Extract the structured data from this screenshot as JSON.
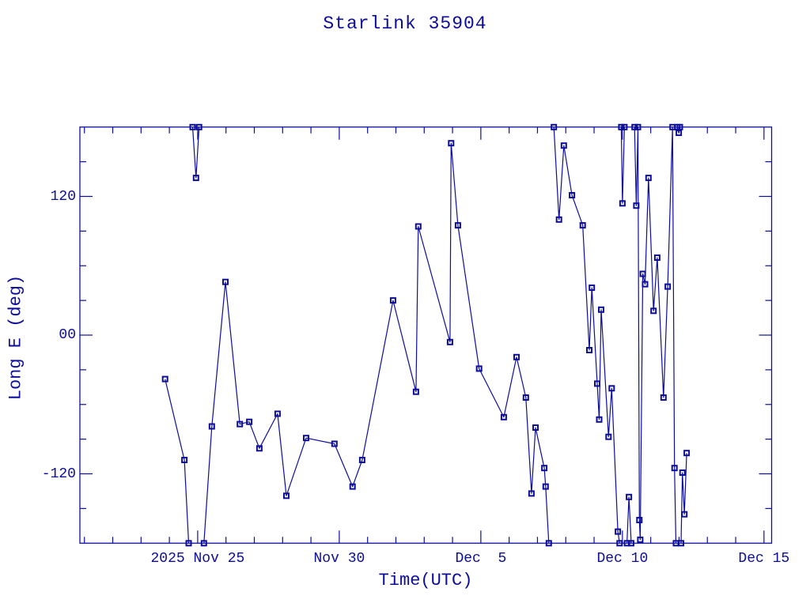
{
  "window": {
    "background": "#ffffff"
  },
  "colors": {
    "accent": "#0d0d9d",
    "background": "#ffffff"
  },
  "chart_data": {
    "type": "line",
    "title": "Starlink 35904",
    "xlabel": "Time(UTC)",
    "ylabel": "Long E (deg)",
    "legend": null,
    "grid": false,
    "marker": "open-square",
    "series_color": "#0d0d9d",
    "x_epoch": "days since 2025-11-20 00:00 UTC",
    "x_range": [
      0.84,
      25.27
    ],
    "y_range": [
      -180,
      180
    ],
    "x_major_ticks": [
      {
        "label": "2025 Nov 25",
        "day": 5
      },
      {
        "label": "Nov 30",
        "day": 10
      },
      {
        "label": "Dec  5",
        "day": 15
      },
      {
        "label": "Dec 10",
        "day": 20
      },
      {
        "label": "Dec 15",
        "day": 25
      }
    ],
    "x_minor_tick_step_days": 1,
    "y_major_ticks": [
      {
        "label": "120",
        "deg": 120
      },
      {
        "label": "00",
        "deg": 0
      },
      {
        "label": "-120",
        "deg": -120
      }
    ],
    "y_minor_tick_step_deg": 30,
    "points_format": "[day, longitude_east_deg, flag] ; flag 1 = measured sample (marker), flag 0 = value at the ±180 wrap limit (segments joining two flag-0 points are not drawn)",
    "points": [
      [
        3.85,
        -38,
        1
      ],
      [
        4.53,
        -108,
        1
      ],
      [
        4.68,
        -180,
        0
      ],
      [
        4.82,
        180,
        0
      ],
      [
        4.94,
        136,
        1
      ],
      [
        5.05,
        180,
        0
      ],
      [
        5.22,
        -180,
        0
      ],
      [
        5.5,
        -79,
        1
      ],
      [
        5.98,
        46,
        1
      ],
      [
        6.49,
        -77,
        1
      ],
      [
        6.82,
        -75,
        1
      ],
      [
        7.18,
        -98,
        1
      ],
      [
        7.82,
        -68,
        1
      ],
      [
        8.13,
        -139,
        1
      ],
      [
        8.83,
        -89,
        1
      ],
      [
        9.83,
        -94,
        1
      ],
      [
        10.47,
        -131,
        1
      ],
      [
        10.81,
        -108,
        1
      ],
      [
        11.9,
        30,
        1
      ],
      [
        12.71,
        -49,
        1
      ],
      [
        12.79,
        94,
        1
      ],
      [
        13.91,
        -6,
        1
      ],
      [
        13.95,
        166,
        1
      ],
      [
        14.19,
        95,
        1
      ],
      [
        14.94,
        -29,
        1
      ],
      [
        15.81,
        -71,
        1
      ],
      [
        16.26,
        -19,
        1
      ],
      [
        16.59,
        -54,
        1
      ],
      [
        16.79,
        -137,
        1
      ],
      [
        16.93,
        -80,
        1
      ],
      [
        17.24,
        -115,
        1
      ],
      [
        17.29,
        -131,
        1
      ],
      [
        17.4,
        -180,
        0
      ],
      [
        17.58,
        180,
        0
      ],
      [
        17.76,
        100,
        1
      ],
      [
        17.93,
        164,
        1
      ],
      [
        18.22,
        121,
        1
      ],
      [
        18.6,
        95,
        1
      ],
      [
        18.83,
        -13,
        1
      ],
      [
        18.92,
        41,
        1
      ],
      [
        19.11,
        -42,
        1
      ],
      [
        19.18,
        -73,
        1
      ],
      [
        19.25,
        22,
        1
      ],
      [
        19.51,
        -88,
        1
      ],
      [
        19.62,
        -46,
        1
      ],
      [
        19.84,
        -170,
        1
      ],
      [
        19.9,
        -180,
        0
      ],
      [
        19.96,
        180,
        0
      ],
      [
        20.0,
        114,
        1
      ],
      [
        20.07,
        180,
        0
      ],
      [
        20.16,
        -180,
        0
      ],
      [
        20.23,
        -140,
        1
      ],
      [
        20.31,
        -180,
        0
      ],
      [
        20.43,
        180,
        0
      ],
      [
        20.49,
        112,
        1
      ],
      [
        20.55,
        180,
        0
      ],
      [
        20.6,
        -160,
        1
      ],
      [
        20.63,
        -177,
        1
      ],
      [
        20.72,
        53,
        1
      ],
      [
        20.8,
        44,
        1
      ],
      [
        20.92,
        136,
        1
      ],
      [
        21.1,
        21,
        1
      ],
      [
        21.23,
        67,
        1
      ],
      [
        21.45,
        -54,
        1
      ],
      [
        21.6,
        42,
        1
      ],
      [
        21.77,
        180,
        0
      ],
      [
        21.84,
        -115,
        1
      ],
      [
        21.89,
        -180,
        0
      ],
      [
        21.94,
        180,
        0
      ],
      [
        21.99,
        175,
        1
      ],
      [
        22.03,
        180,
        0
      ],
      [
        22.07,
        -180,
        0
      ],
      [
        22.12,
        -119,
        1
      ],
      [
        22.19,
        -155,
        1
      ],
      [
        22.27,
        -102,
        1
      ]
    ]
  }
}
